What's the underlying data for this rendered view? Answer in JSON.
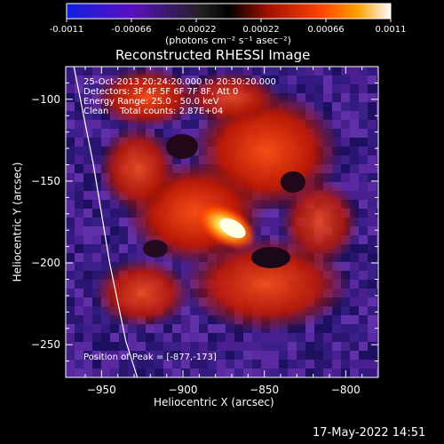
{
  "colorbar": {
    "tick_labels": [
      "-0.0011",
      "-0.00066",
      "-0.00022",
      "0.00022",
      "0.00066",
      "0.0011"
    ],
    "units_label": "(photons cm⁻² s⁻¹ asec⁻²)",
    "range": [
      -0.0011,
      0.0011
    ]
  },
  "chart_data": {
    "type": "heatmap",
    "title": "Reconstructed RHESSI Image",
    "xlabel": "Heliocentric X (arcsec)",
    "ylabel": "Heliocentric Y (arcsec)",
    "xlim": [
      -972,
      -780
    ],
    "ylim": [
      -270,
      -80
    ],
    "x_ticks": [
      -950,
      -900,
      -850,
      -800
    ],
    "y_ticks": [
      -100,
      -150,
      -200,
      -250
    ],
    "x_tick_labels": [
      "−950",
      "−900",
      "−850",
      "−800"
    ],
    "y_tick_labels": [
      "−100",
      "−150",
      "−200",
      "−250"
    ],
    "peak": [
      -877,
      -173
    ],
    "limb_line": [
      [
        -967,
        -80
      ],
      [
        -955,
        -140
      ],
      [
        -945,
        -200
      ],
      [
        -935,
        -248
      ],
      [
        -928,
        -270
      ]
    ],
    "colormap": "RHESSI red-temperature with blue negative",
    "annotations": {
      "time_range": "25-Oct-2013 20:24:20.000 to 20:30:20.000",
      "detectors": "Detectors: 3F 4F 5F 6F 7F 8F, Att 0",
      "energy": "Energy Range: 25.0 - 50.0 keV",
      "clean": "Clean    Total counts: 2.87E+04",
      "peak_text": "Position of Peak = [-877,-173]"
    }
  },
  "footer": {
    "date": "17-May-2022 14:51"
  }
}
